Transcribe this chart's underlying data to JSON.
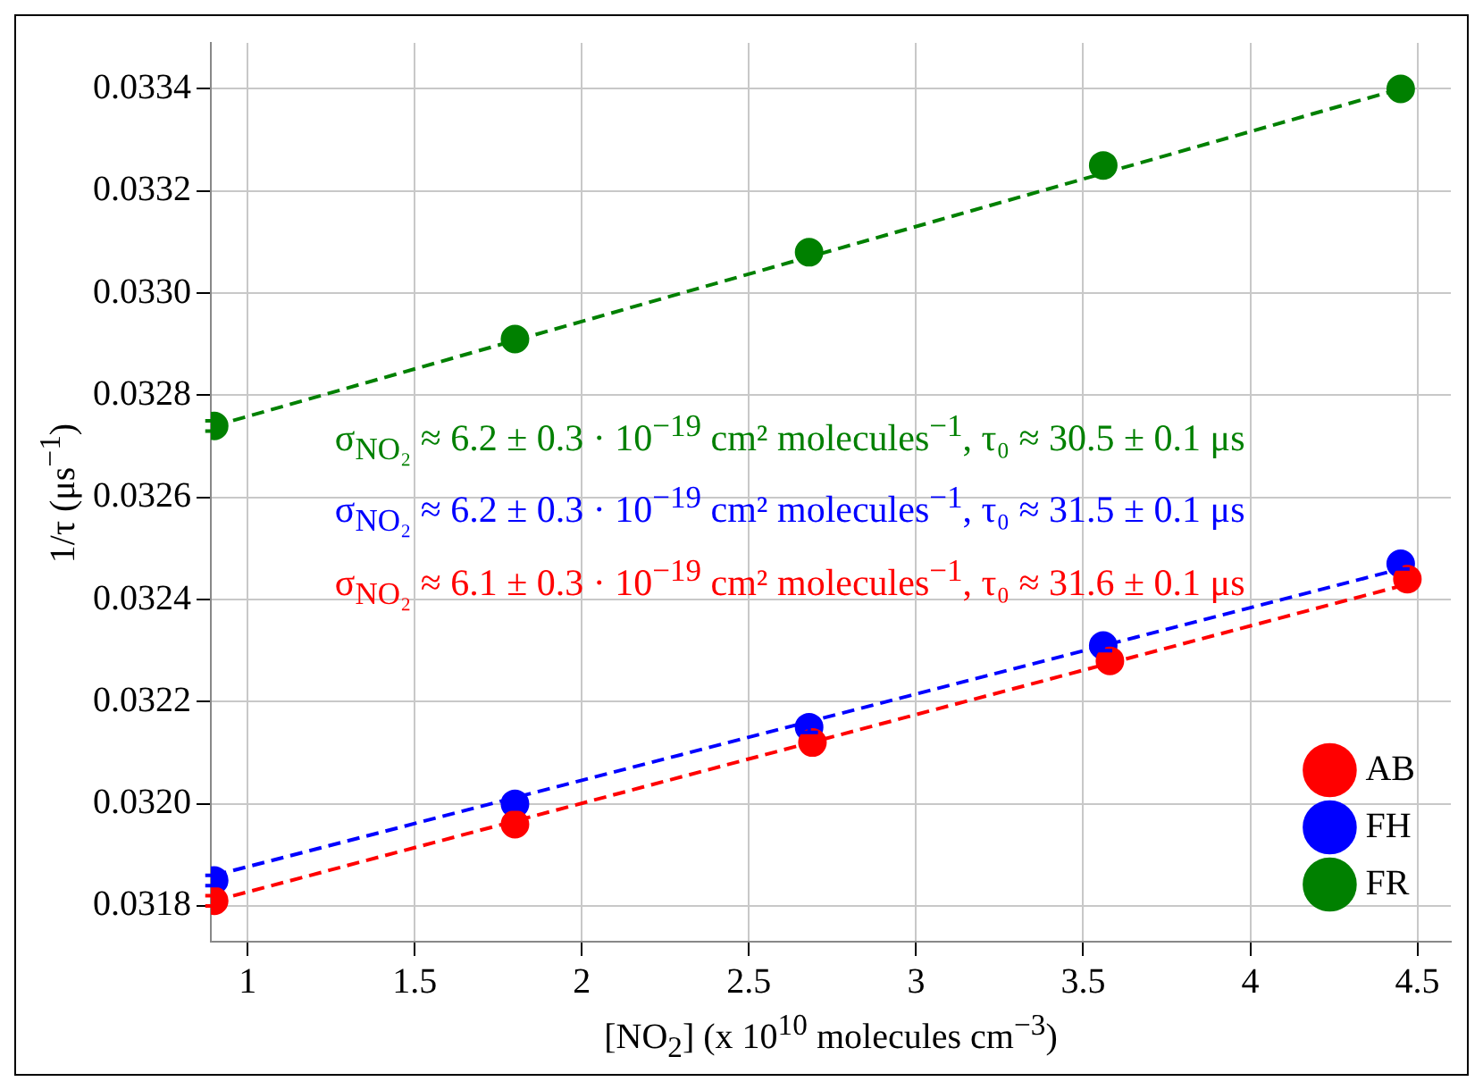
{
  "chart_data": {
    "type": "scatter",
    "xlabel": "[NO$_{2}$] (x 10$^{10}$ molecules cm$^{−3}$)",
    "ylabel": "1/τ (μs$^{−1}$)",
    "xlim": [
      0.89,
      4.6
    ],
    "xticks": [
      1,
      1.5,
      2,
      2.5,
      3,
      3.5,
      4,
      4.5
    ],
    "ylim": [
      0.03173,
      0.03349
    ],
    "yticks": [
      {
        "value": 0.0318,
        "label": "0.0318"
      },
      {
        "value": 0.032,
        "label": "0.0320"
      },
      {
        "value": 0.0322,
        "label": "0.0322"
      },
      {
        "value": 0.0324,
        "label": "0.0324"
      },
      {
        "value": 0.0326,
        "label": "0.0326"
      },
      {
        "value": 0.0328,
        "label": "0.0328"
      },
      {
        "value": 0.033,
        "label": "0.0330"
      },
      {
        "value": 0.0332,
        "label": "0.0332"
      },
      {
        "value": 0.0334,
        "label": "0.0334"
      }
    ],
    "grid": true,
    "legend": "bottom right",
    "marker": "circle",
    "series": [
      {
        "name": "AB",
        "color": "#ff0000",
        "x": [
          0.9,
          1.8,
          2.69,
          3.58,
          4.47
        ],
        "values": [
          0.03181,
          0.03196,
          0.03212,
          0.03228,
          0.03244
        ],
        "errors": [
          1e-05,
          1e-05,
          1e-05,
          1e-05,
          1e-05
        ]
      },
      {
        "name": "FH",
        "color": "#0000ff",
        "x": [
          0.9,
          1.8,
          2.68,
          3.56,
          4.45
        ],
        "values": [
          0.03185,
          0.032,
          0.03215,
          0.03231,
          0.03247
        ],
        "errors": [
          1e-05,
          1e-05,
          1e-05,
          1e-05,
          1e-05
        ]
      },
      {
        "name": "FR",
        "color": "#008000",
        "x": [
          0.9,
          1.8,
          2.68,
          3.56,
          4.45
        ],
        "values": [
          0.03274,
          0.03291,
          0.03308,
          0.03325,
          0.0334
        ],
        "errors": [
          1e-05,
          1e-05,
          1e-05,
          1e-05,
          1e-05
        ]
      },
      {
        "type": "line",
        "color": "#ff0000",
        "x": [
          0.9,
          4.47
        ],
        "values": [
          0.03181,
          0.03243
        ],
        "line_style": "dashed",
        "marker": "none"
      },
      {
        "type": "line",
        "color": "#0000ff",
        "x": [
          0.9,
          4.45
        ],
        "values": [
          0.03186,
          0.03246
        ],
        "line_style": "dashed",
        "marker": "none"
      },
      {
        "type": "line",
        "color": "#008000",
        "x": [
          0.9,
          4.45
        ],
        "values": [
          0.03274,
          0.0334
        ],
        "line_style": "dashed",
        "marker": "none"
      }
    ],
    "annotations": [
      "σ$_{NO₂}$ ≈ 6.2 ± 0.3 · 10$^{−19}$ cm² molecules$^{−1}$, τ₀ ≈ 30.5 ± 0.1 μs",
      "σ$_{NO₂}$ ≈ 6.2 ± 0.3 · 10$^{−19}$ cm² molecules$^{−1}$, τ₀ ≈ 31.5 ± 0.1 μs",
      "σ$_{NO₂}$ ≈ 6.1 ± 0.3 · 10$^{−19}$ cm² molecules$^{−1}$, τ₀ ≈ 31.6 ± 0.1 μs"
    ]
  }
}
